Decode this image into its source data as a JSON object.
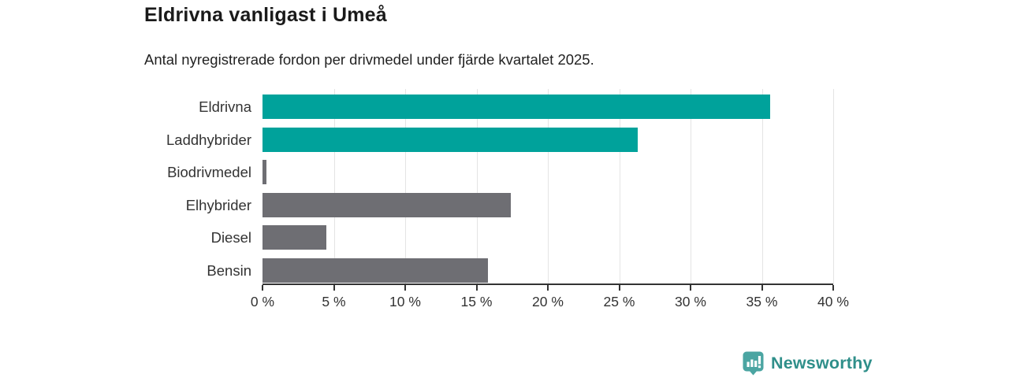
{
  "header": {
    "title": "Eldrivna vanligast i Umeå",
    "subtitle": "Antal nyregistrerade fordon per drivmedel under fjärde kvartalet 2025."
  },
  "chart_data": {
    "type": "bar",
    "orientation": "horizontal",
    "title": "Eldrivna vanligast i Umeå",
    "subtitle": "Antal nyregistrerade fordon per drivmedel under fjärde kvartalet 2025.",
    "categories": [
      "Eldrivna",
      "Laddhybrider",
      "Biodrivmedel",
      "Elhybrider",
      "Diesel",
      "Bensin"
    ],
    "values": [
      35.6,
      26.3,
      0.3,
      17.4,
      4.5,
      15.8
    ],
    "unit": "%",
    "xlim": [
      0,
      40
    ],
    "x_ticks": [
      0,
      5,
      10,
      15,
      20,
      25,
      30,
      35,
      40
    ],
    "x_tick_labels": [
      "0 %",
      "5 %",
      "10 %",
      "15 %",
      "20 %",
      "25 %",
      "30 %",
      "35 %",
      "40 %"
    ],
    "bar_colors": [
      "#00a29b",
      "#00a29b",
      "#6e6e73",
      "#6e6e73",
      "#6e6e73",
      "#6e6e73"
    ],
    "highlight_color": "#00a29b",
    "default_color": "#6e6e73",
    "grid": true,
    "gridline_color": "#e4e4e4",
    "axis_color": "#333333",
    "legend": "none"
  },
  "branding": {
    "logo_text": "Newsworthy",
    "logo_text_color": "#2f8f8a",
    "logo_icon_color": "#4ba5a2",
    "logo_icon_name": "newsworthy-bubble-chart-icon"
  }
}
